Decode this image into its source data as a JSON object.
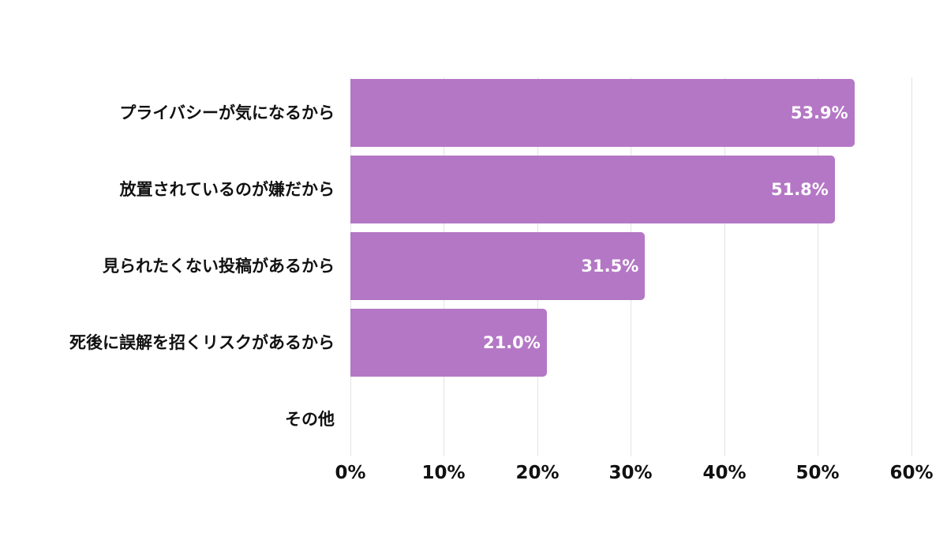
{
  "chart_data": {
    "type": "bar",
    "orientation": "horizontal",
    "title": "",
    "xlabel": "",
    "ylabel": "",
    "categories": [
      "プライバシーが気になるから",
      "放置されているのが嫌だから",
      "見られたくない投稿があるから",
      "死後に誤解を招くリスクがあるから",
      "その他"
    ],
    "values": [
      53.9,
      51.8,
      31.5,
      21.0,
      0
    ],
    "value_labels": [
      "53.9%",
      "51.8%",
      "31.5%",
      "21.0%",
      ""
    ],
    "xlim": [
      0,
      60
    ],
    "xticks": [
      "0%",
      "10%",
      "20%",
      "30%",
      "40%",
      "50%",
      "60%"
    ],
    "grid": true,
    "legend": "none",
    "bar_color": "#b477c5"
  },
  "style": {
    "bar_color": "#b477c5",
    "grid_color": "#e3e3e3",
    "text_color": "#111111"
  }
}
